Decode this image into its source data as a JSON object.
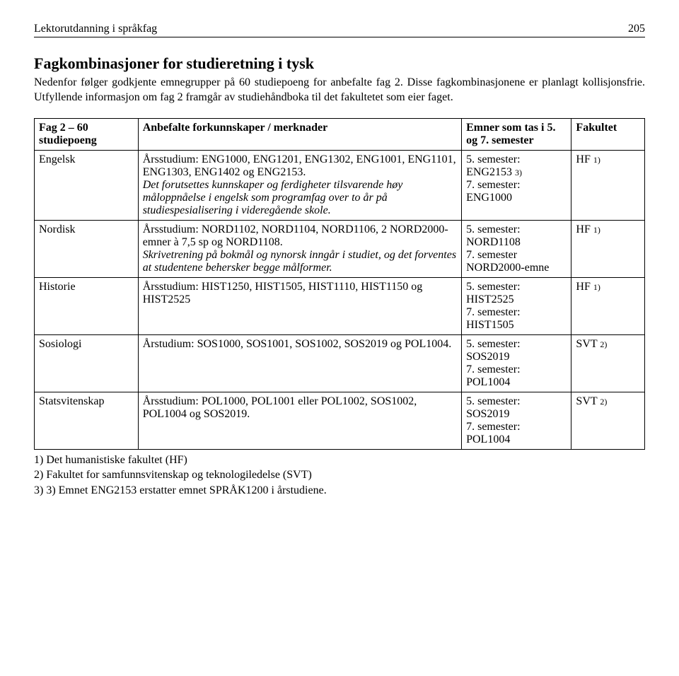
{
  "header": {
    "running_title": "Lektorutdanning i språkfag",
    "page_number": "205"
  },
  "section": {
    "title": "Fagkombinasjoner for studieretning i tysk",
    "intro": "Nedenfor følger godkjente emnegrupper på 60 studiepoeng for anbefalte fag 2. Disse fagkombinasjonene er planlagt kollisjonsfrie. Utfyllende informasjon om fag 2 framgår av studiehåndboka til det fakultetet som eier faget."
  },
  "table": {
    "headers": {
      "col1": "Fag 2 – 60 studiepoeng",
      "col2": "Anbefalte forkunnskaper / merknader",
      "col3": "Emner som tas i 5. og 7. semester",
      "col4": "Fakultet"
    },
    "rows": [
      {
        "subject": "Engelsk",
        "desc_plain": "Årsstudium: ENG1000, ENG1201, ENG1302, ENG1001, ENG1101, ENG1303, ENG1402 og ENG2153.",
        "desc_italic": "Det forutsettes kunnskaper og ferdigheter tilsvarende høy måloppnåelse i engelsk som programfag over to år på studiespesialisering i videregående skole.",
        "emner_l1": "5. semester:",
        "emner_l2a": "ENG2153 ",
        "emner_l2b": "3)",
        "emner_l3": "7. semester:",
        "emner_l4": "ENG1000",
        "fak_pre": "HF ",
        "fak_note": "1)"
      },
      {
        "subject": "Nordisk",
        "desc_plain": "Årsstudium: NORD1102, NORD1104, NORD1106, 2 NORD2000-emner à 7,5 sp og NORD1108.",
        "desc_italic": "Skrivetrening på bokmål og nynorsk inngår i studiet, og det forventes at studentene behersker begge målformer.",
        "emner_l1": "5. semester:",
        "emner_l2a": "NORD1108",
        "emner_l2b": "",
        "emner_l3": "7. semester",
        "emner_l4": "NORD2000-emne",
        "fak_pre": "HF ",
        "fak_note": "1)"
      },
      {
        "subject": "Historie",
        "desc_plain": "Årsstudium: HIST1250, HIST1505, HIST1110, HIST1150 og HIST2525",
        "desc_italic": "",
        "emner_l1": "5. semester:",
        "emner_l2a": "HIST2525",
        "emner_l2b": "",
        "emner_l3": "7. semester:",
        "emner_l4": "HIST1505",
        "fak_pre": "HF ",
        "fak_note": "1)"
      },
      {
        "subject": "Sosiologi",
        "desc_plain": "Årstudium: SOS1000, SOS1001, SOS1002, SOS2019 og POL1004.",
        "desc_italic": "",
        "emner_l1": "5. semester:",
        "emner_l2a": "SOS2019",
        "emner_l2b": "",
        "emner_l3": "7. semester:",
        "emner_l4": "POL1004",
        "fak_pre": "SVT ",
        "fak_note": "2)"
      },
      {
        "subject": "Statsvitenskap",
        "desc_plain": "Årsstudium: POL1000, POL1001 eller POL1002, SOS1002, POL1004 og SOS2019.",
        "desc_italic": "",
        "emner_l1": "5. semester:",
        "emner_l2a": "SOS2019",
        "emner_l2b": "",
        "emner_l3": "7. semester:",
        "emner_l4": "POL1004",
        "fak_pre": "SVT ",
        "fak_note": "2)"
      }
    ]
  },
  "footnotes": {
    "n1": "1) Det humanistiske fakultet (HF)",
    "n2": "2) Fakultet for samfunnsvitenskap og teknologiledelse (SVT)",
    "n3": "3) 3) Emnet ENG2153 erstatter emnet SPRÅK1200 i årstudiene."
  }
}
